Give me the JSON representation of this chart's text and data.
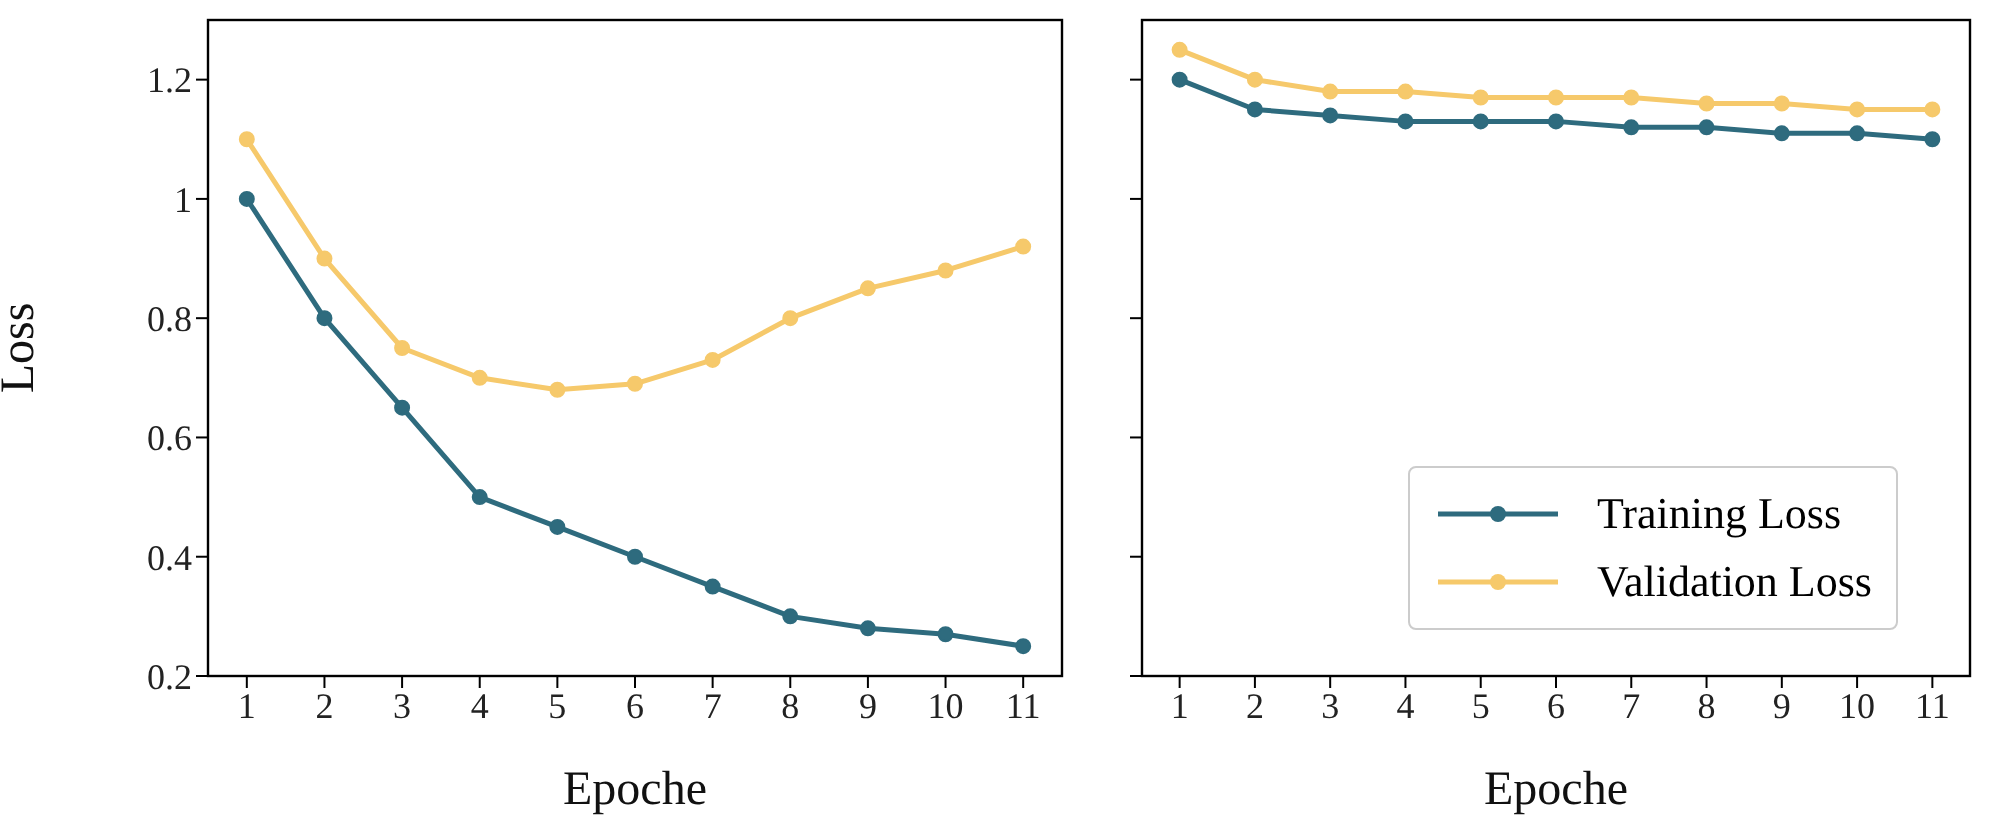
{
  "chart_data": [
    {
      "type": "line",
      "xlabel": "Epoche",
      "ylabel": "Loss",
      "x": [
        1,
        2,
        3,
        4,
        5,
        6,
        7,
        8,
        9,
        10,
        11
      ],
      "xlim": [
        0.5,
        11.5
      ],
      "xticks": [
        1,
        2,
        3,
        4,
        5,
        6,
        7,
        8,
        9,
        10,
        11
      ],
      "ylim": [
        0.2,
        1.3
      ],
      "yticks": [
        0.2,
        0.4,
        0.6,
        0.8,
        1.0,
        1.2
      ],
      "marker": "circle",
      "line_style": "solid",
      "grid": false,
      "legend": false,
      "series": [
        {
          "color": "#2e6b7e",
          "values": [
            1.0,
            0.8,
            0.65,
            0.5,
            0.45,
            0.4,
            0.35,
            0.3,
            0.28,
            0.27,
            0.25
          ]
        },
        {
          "color": "#f6c96b",
          "values": [
            1.1,
            0.9,
            0.75,
            0.7,
            0.68,
            0.69,
            0.73,
            0.8,
            0.85,
            0.88,
            0.92
          ]
        }
      ]
    },
    {
      "type": "line",
      "xlabel": "Epoche",
      "x": [
        1,
        2,
        3,
        4,
        5,
        6,
        7,
        8,
        9,
        10,
        11
      ],
      "xlim": [
        0.5,
        11.5
      ],
      "xticks": [
        1,
        2,
        3,
        4,
        5,
        6,
        7,
        8,
        9,
        10,
        11
      ],
      "ylim": [
        0.2,
        1.3
      ],
      "yticks": [
        0.2,
        0.4,
        0.6,
        0.8,
        1.0,
        1.2
      ],
      "tick_labels": "x",
      "marker": "circle",
      "line_style": "solid",
      "grid": false,
      "legend": "bottom right",
      "series": [
        {
          "name": "Training Loss",
          "color": "#2e6b7e",
          "values": [
            1.2,
            1.15,
            1.14,
            1.13,
            1.13,
            1.13,
            1.12,
            1.12,
            1.11,
            1.11,
            1.1
          ]
        },
        {
          "name": "Validation Loss",
          "color": "#f6c96b",
          "values": [
            1.25,
            1.2,
            1.18,
            1.18,
            1.17,
            1.17,
            1.17,
            1.16,
            1.16,
            1.15,
            1.15
          ]
        }
      ]
    }
  ]
}
